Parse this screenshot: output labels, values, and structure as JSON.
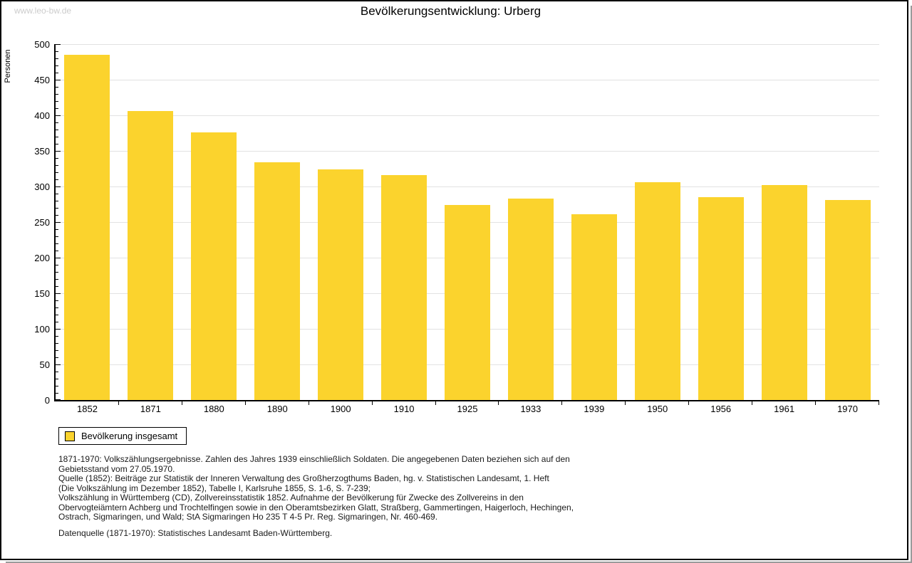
{
  "watermark": "www.leo-bw.de",
  "title": "Bevölkerungsentwicklung: Urberg",
  "chart_data": {
    "type": "bar",
    "title": "Bevölkerungsentwicklung: Urberg",
    "categories": [
      "1852",
      "1871",
      "1880",
      "1890",
      "1900",
      "1910",
      "1925",
      "1933",
      "1939",
      "1950",
      "1956",
      "1961",
      "1970"
    ],
    "values": [
      485,
      406,
      376,
      334,
      324,
      316,
      274,
      283,
      261,
      306,
      285,
      302,
      281
    ],
    "series_name": "Bevölkerung insgesamt",
    "xlabel": "",
    "ylabel": "Personen",
    "ylim": [
      0,
      500
    ],
    "ytick_step": 50,
    "ytick_minor_step": 10,
    "grid": true,
    "legend_position": "bottom-left",
    "bar_color": "#FBD32D",
    "grid_color": "#E2E2E2",
    "axis_color": "#000000"
  },
  "legend": {
    "label": "Bevölkerung insgesamt",
    "swatch_color": "#FBD32D"
  },
  "footnotes": {
    "lines": [
      "1871-1970: Volkszählungsergebnisse. Zahlen des Jahres 1939 einschließlich Soldaten. Die angegebenen Daten beziehen sich auf den",
      "Gebietsstand vom 27.05.1970.",
      "Quelle (1852): Beiträge zur Statistik der Inneren Verwaltung des Großherzogthums Baden, hg. v. Statistischen Landesamt, 1. Heft",
      "(Die Volkszählung im Dezember 1852), Tabelle I, Karlsruhe 1855, S. 1-6, S. 7-239;",
      "Volkszählung in Württemberg (CD), Zollvereinsstatistik 1852. Aufnahme der Bevölkerung für Zwecke des Zollvereins in den",
      "Obervogteiämtern Achberg und Trochtelfingen sowie in den Oberamtsbezirken Glatt, Straßberg, Gammertingen, Haigerloch, Hechingen,",
      "Ostrach, Sigmaringen, und Wald; StA Sigmaringen Ho 235 T 4-5 Pr. Reg. Sigmaringen, Nr. 460-469."
    ],
    "source_line": "Datenquelle (1871-1970): Statistisches Landesamt Baden-Württemberg."
  }
}
